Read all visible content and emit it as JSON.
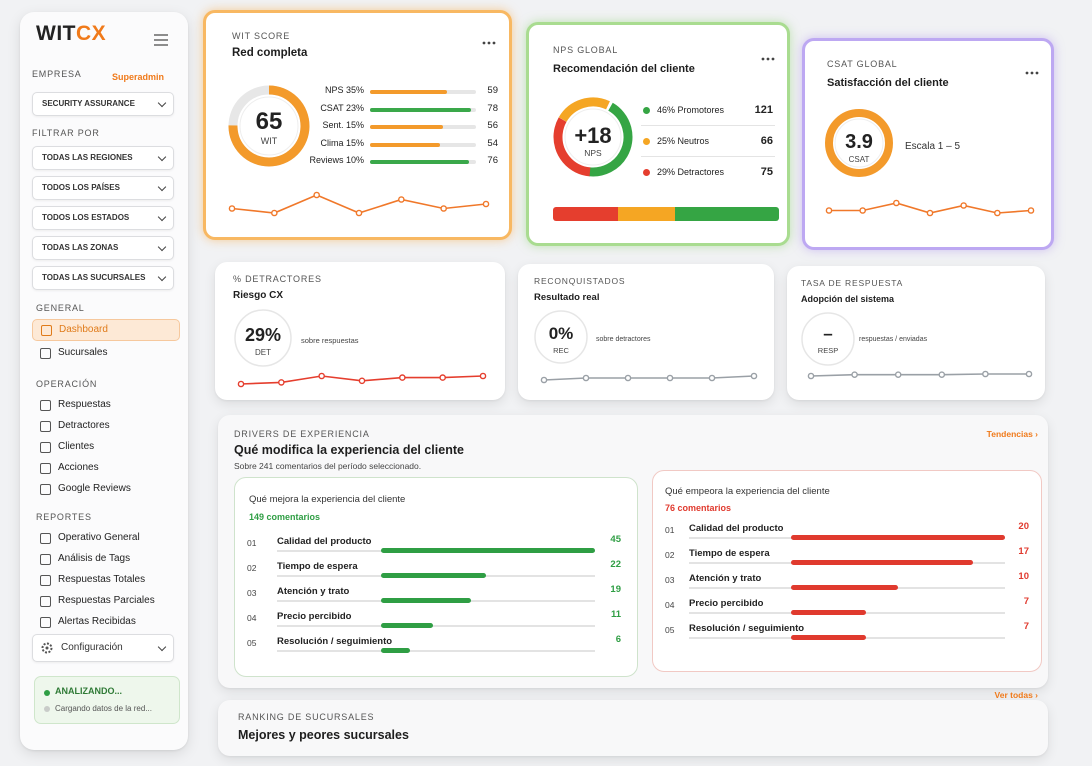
{
  "sidebar": {
    "logo": {
      "wit": "WIT",
      "cx": "CX"
    },
    "company_label": "EMPRESA",
    "role": "Superadmin",
    "company": "SECURITY ASSURANCE",
    "filter_label": "FILTRAR POR",
    "filters": [
      "TODAS LAS REGIONES",
      "TODOS LOS PAÍSES",
      "TODOS LOS ESTADOS",
      "TODAS LAS ZONAS",
      "TODAS LAS SUCURSALES"
    ],
    "sections": [
      {
        "title": "GENERAL",
        "items": [
          "Dashboard",
          "Sucursales"
        ]
      },
      {
        "title": "OPERACIÓN",
        "items": [
          "Respuestas",
          "Detractores",
          "Clientes",
          "Acciones",
          "Google Reviews"
        ]
      },
      {
        "title": "REPORTES",
        "items": [
          "Operativo General",
          "Análisis de Tags",
          "Respuestas Totales",
          "Respuestas Parciales",
          "Alertas Recibidas"
        ]
      }
    ],
    "settings": "Configuración",
    "status": {
      "title": "ANALIZANDO...",
      "text": "Cargando datos de la red..."
    }
  },
  "wit": {
    "label": "WIT SCORE",
    "title": "Red completa",
    "score": "65",
    "unit": "WIT",
    "rows": [
      {
        "name": "NPS 35%",
        "value": 59,
        "color": "#f39a2b"
      },
      {
        "name": "CSAT 23%",
        "value": 78,
        "color": "#3aa84a"
      },
      {
        "name": "Sent. 15%",
        "value": 56,
        "color": "#f39a2b"
      },
      {
        "name": "Clima 15%",
        "value": 54,
        "color": "#f39a2b"
      },
      {
        "name": "Reviews 10%",
        "value": 76,
        "color": "#3aa84a"
      }
    ],
    "trend": [
      3,
      2,
      6,
      2,
      5,
      3,
      4
    ],
    "trend_color": "#f0782a"
  },
  "nps": {
    "label": "NPS GLOBAL",
    "title": "Recomendación del cliente",
    "score": "+18",
    "unit": "NPS",
    "rows": [
      {
        "name": "46% Promotores",
        "value": 121,
        "color": "#35a544"
      },
      {
        "name": "25% Neutros",
        "value": 66,
        "color": "#f5a623"
      },
      {
        "name": "29% Detractores",
        "value": 75,
        "color": "#e53e2e"
      }
    ]
  },
  "csat": {
    "label": "CSAT GLOBAL",
    "title": "Satisfacción del cliente",
    "score": "3.9",
    "unit": "CSAT",
    "scale": "Escala 1 – 5",
    "trend": [
      2,
      2,
      5,
      1,
      4,
      1,
      2
    ],
    "trend_color": "#f0782a"
  },
  "detractors": {
    "label": "% DETRACTORES",
    "title": "Riesgo CX",
    "value": "29%",
    "unit": "DET",
    "note": "sobre respuestas",
    "trend": [
      0,
      1,
      5,
      2,
      4,
      4,
      5
    ],
    "trend_color": "#e53e2e"
  },
  "reconquered": {
    "label": "RECONQUISTADOS",
    "title": "Resultado real",
    "value": "0%",
    "unit": "REC",
    "note": "sobre detractores",
    "trend": [
      0,
      1,
      1,
      1,
      1,
      2
    ],
    "trend_color": "#9aa0a6"
  },
  "response": {
    "label": "TASA DE RESPUESTA",
    "title": "Adopción del sistema",
    "value": "–",
    "unit": "RESP",
    "note": "respuestas / enviadas",
    "trend": [
      0,
      2,
      2,
      2,
      3,
      3
    ],
    "trend_color": "#9aa0a6"
  },
  "drivers": {
    "label": "DRIVERS DE EXPERIENCIA",
    "title": "Qué modifica la experiencia del cliente",
    "subtitle": "Sobre 241 comentarios del período seleccionado.",
    "link": "Tendencias ›",
    "positive": {
      "title": "Qué mejora la experiencia del cliente",
      "count": "149 comentarios",
      "color": "#2f9e44",
      "items": [
        {
          "rank": "01",
          "name": "Calidad del producto",
          "value": 45
        },
        {
          "rank": "02",
          "name": "Tiempo de espera",
          "value": 22
        },
        {
          "rank": "03",
          "name": "Atención y trato",
          "value": 19
        },
        {
          "rank": "04",
          "name": "Precio percibido",
          "value": 11
        },
        {
          "rank": "05",
          "name": "Resolución / seguimiento",
          "value": 6
        }
      ]
    },
    "negative": {
      "title": "Qué empeora la experiencia del cliente",
      "count": "76 comentarios",
      "color": "#e03a2e",
      "items": [
        {
          "rank": "01",
          "name": "Calidad del producto",
          "value": 20
        },
        {
          "rank": "02",
          "name": "Tiempo de espera",
          "value": 17
        },
        {
          "rank": "03",
          "name": "Atención y trato",
          "value": 10
        },
        {
          "rank": "04",
          "name": "Precio percibido",
          "value": 7
        },
        {
          "rank": "05",
          "name": "Resolución / seguimiento",
          "value": 7
        }
      ]
    }
  },
  "ranking": {
    "label": "RANKING DE SUCURSALES",
    "title": "Mejores y peores sucursales",
    "link": "Ver todas ›"
  }
}
